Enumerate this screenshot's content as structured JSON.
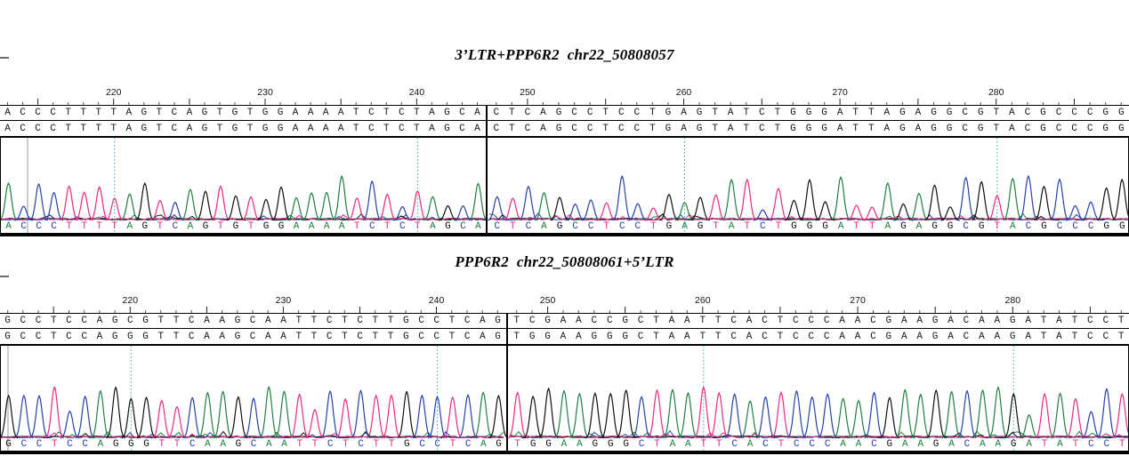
{
  "base_colors": {
    "A": "#1e8040",
    "C": "#2640a8",
    "G": "#101010",
    "T": "#e42a82"
  },
  "guide_color": "#35b0b0",
  "panels": [
    {
      "title": "3’LTR+PPP6R2  chr22_50808057",
      "sections": [
        {
          "start": 213,
          "ruler_labels": [
            220,
            230,
            240
          ],
          "ref": "ACCCTTTTAGTCAGTGTGGAAAATCTCTAGCA",
          "read": "ACCCTTTTAGTCAGTGTGGAAAATCTCTAGCA",
          "trace": "ACCCTTTTAGTCAGTGTGGAAAATCTCTAGCA"
        },
        {
          "start": 248,
          "ruler_labels": [
            250,
            260,
            270,
            280
          ],
          "ref": "CTCAGCCTCCTGAGTATCTGGGATTAGAGGCGTACGCCCGG",
          "read": "CTCAGCCTCCTGAGTATCTGGGATTAGAGGCGTACGCCCGG",
          "trace": "CTCAGCCTCCTGAGTATCTGGGATTAGAGGCGTACGCCCGG"
        }
      ]
    },
    {
      "title": "PPP6R2  chr22_50808061+5’LTR",
      "sections": [
        {
          "start": 212,
          "ruler_labels": [
            220,
            230,
            240
          ],
          "ref": "GCCTCCAGCGTTCAAGCAATTCTCTTGCCTCAG",
          "read": "GCCTCCAGGGTTCAAGCAATTCTCTTGCCTCAG",
          "trace": "GCCTCCAGGGTTCAAGCAATTCTCTTGCCTCAG"
        },
        {
          "start": 248,
          "ruler_labels": [
            250,
            260,
            270,
            280
          ],
          "ref": "TCGAACCGCTAATTCACTCCCAACGAAGACAAGATATCCT",
          "read": "TGGAAGGGCTAATTCACTCCCAACGAAGACAAGATATCCT",
          "trace": "TGGAAGGGCTAATTCACTCCCAACGAAGACAAGATATCCT"
        }
      ]
    }
  ]
}
